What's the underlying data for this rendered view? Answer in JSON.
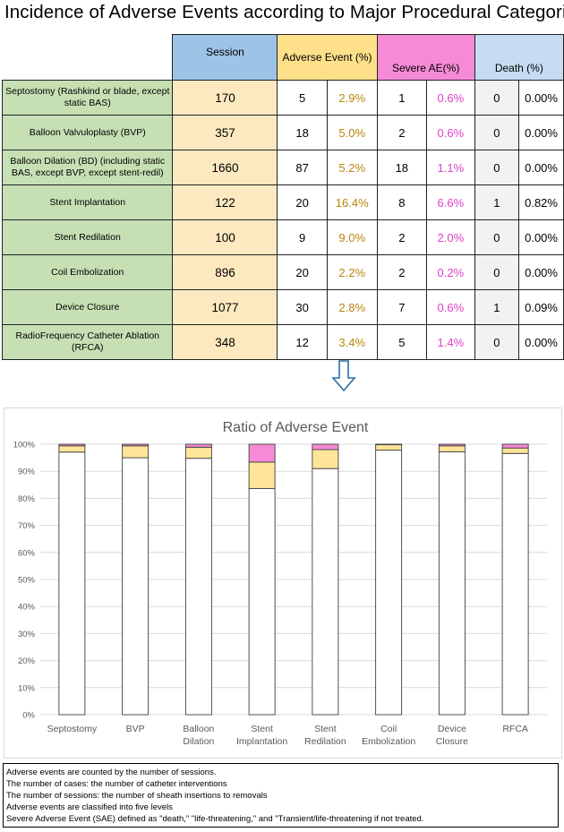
{
  "title": "Incidence of Adverse Events according to Major Procedural Categories",
  "table": {
    "headers": {
      "session": "Session",
      "adverse_event": "Adverse Event (%)",
      "severe_ae": "Severe AE(%)",
      "death": "Death (%)"
    },
    "rows": [
      {
        "category": "Septostomy (Rashkind or blade, except static BAS)",
        "session": "170",
        "ae": "5",
        "ae_pct": "2.9%",
        "sae": "1",
        "sae_pct": "0.6%",
        "death": "0",
        "death_pct": "0.00%"
      },
      {
        "category": "Balloon Valvuloplasty (BVP)",
        "session": "357",
        "ae": "18",
        "ae_pct": "5.0%",
        "sae": "2",
        "sae_pct": "0.6%",
        "death": "0",
        "death_pct": "0.00%"
      },
      {
        "category": "Balloon Dilation (BD) (including static BAS, except BVP, except stent-redil)",
        "session": "1660",
        "ae": "87",
        "ae_pct": "5.2%",
        "sae": "18",
        "sae_pct": "1.1%",
        "death": "0",
        "death_pct": "0.00%"
      },
      {
        "category": "Stent Implantation",
        "session": "122",
        "ae": "20",
        "ae_pct": "16.4%",
        "sae": "8",
        "sae_pct": "6.6%",
        "death": "1",
        "death_pct": "0.82%"
      },
      {
        "category": "Stent Redilation",
        "session": "100",
        "ae": "9",
        "ae_pct": "9.0%",
        "sae": "2",
        "sae_pct": "2.0%",
        "death": "0",
        "death_pct": "0.00%"
      },
      {
        "category": "Coil Embolization",
        "session": "896",
        "ae": "20",
        "ae_pct": "2.2%",
        "sae": "2",
        "sae_pct": "0.2%",
        "death": "0",
        "death_pct": "0.00%"
      },
      {
        "category": "Device Closure",
        "session": "1077",
        "ae": "30",
        "ae_pct": "2.8%",
        "sae": "7",
        "sae_pct": "0.6%",
        "death": "1",
        "death_pct": "0.09%"
      },
      {
        "category": "RadioFrequency Catheter Ablation (RFCA)",
        "session": "348",
        "ae": "12",
        "ae_pct": "3.4%",
        "sae": "5",
        "sae_pct": "1.4%",
        "death": "0",
        "death_pct": "0.00%"
      }
    ]
  },
  "arrow_icon": "down-arrow-icon",
  "chart_data": {
    "type": "bar",
    "stacked": true,
    "title": "Ratio of Adverse Event",
    "xlabel": "",
    "ylabel": "",
    "ylim": [
      0,
      100
    ],
    "yticks": [
      "0%",
      "10%",
      "20%",
      "30%",
      "40%",
      "50%",
      "60%",
      "70%",
      "80%",
      "90%",
      "100%"
    ],
    "categories": [
      "Septostomy",
      "BVP",
      "Balloon Dilation",
      "Stent Implantation",
      "Stent Redilation",
      "Coil Embolization",
      "Device Closure",
      "RFCA"
    ],
    "series": [
      {
        "color": "#ffffff",
        "values": [
          97.1,
          95.0,
          94.8,
          83.6,
          91.0,
          97.8,
          97.2,
          96.6
        ]
      },
      {
        "color": "#ffe599",
        "values": [
          2.3,
          4.4,
          4.1,
          9.8,
          7.0,
          2.0,
          2.2,
          2.0
        ]
      },
      {
        "color": "#f58ad6",
        "values": [
          0.6,
          0.6,
          1.1,
          6.6,
          2.0,
          0.2,
          0.6,
          1.4
        ]
      }
    ],
    "grid": true,
    "legend": "none"
  },
  "notes": [
    "Adverse events are counted by the number of sessions.",
    "The number of cases: the number of catheter interventions",
    "The number of sessions: the number of sheath insertions to removals",
    "Adverse events are classified into five levels",
    "Severe Adverse Event (SAE) defined as \"death,\" \"life-threatening,\" and \"Transient/life-threatening if not treated."
  ]
}
